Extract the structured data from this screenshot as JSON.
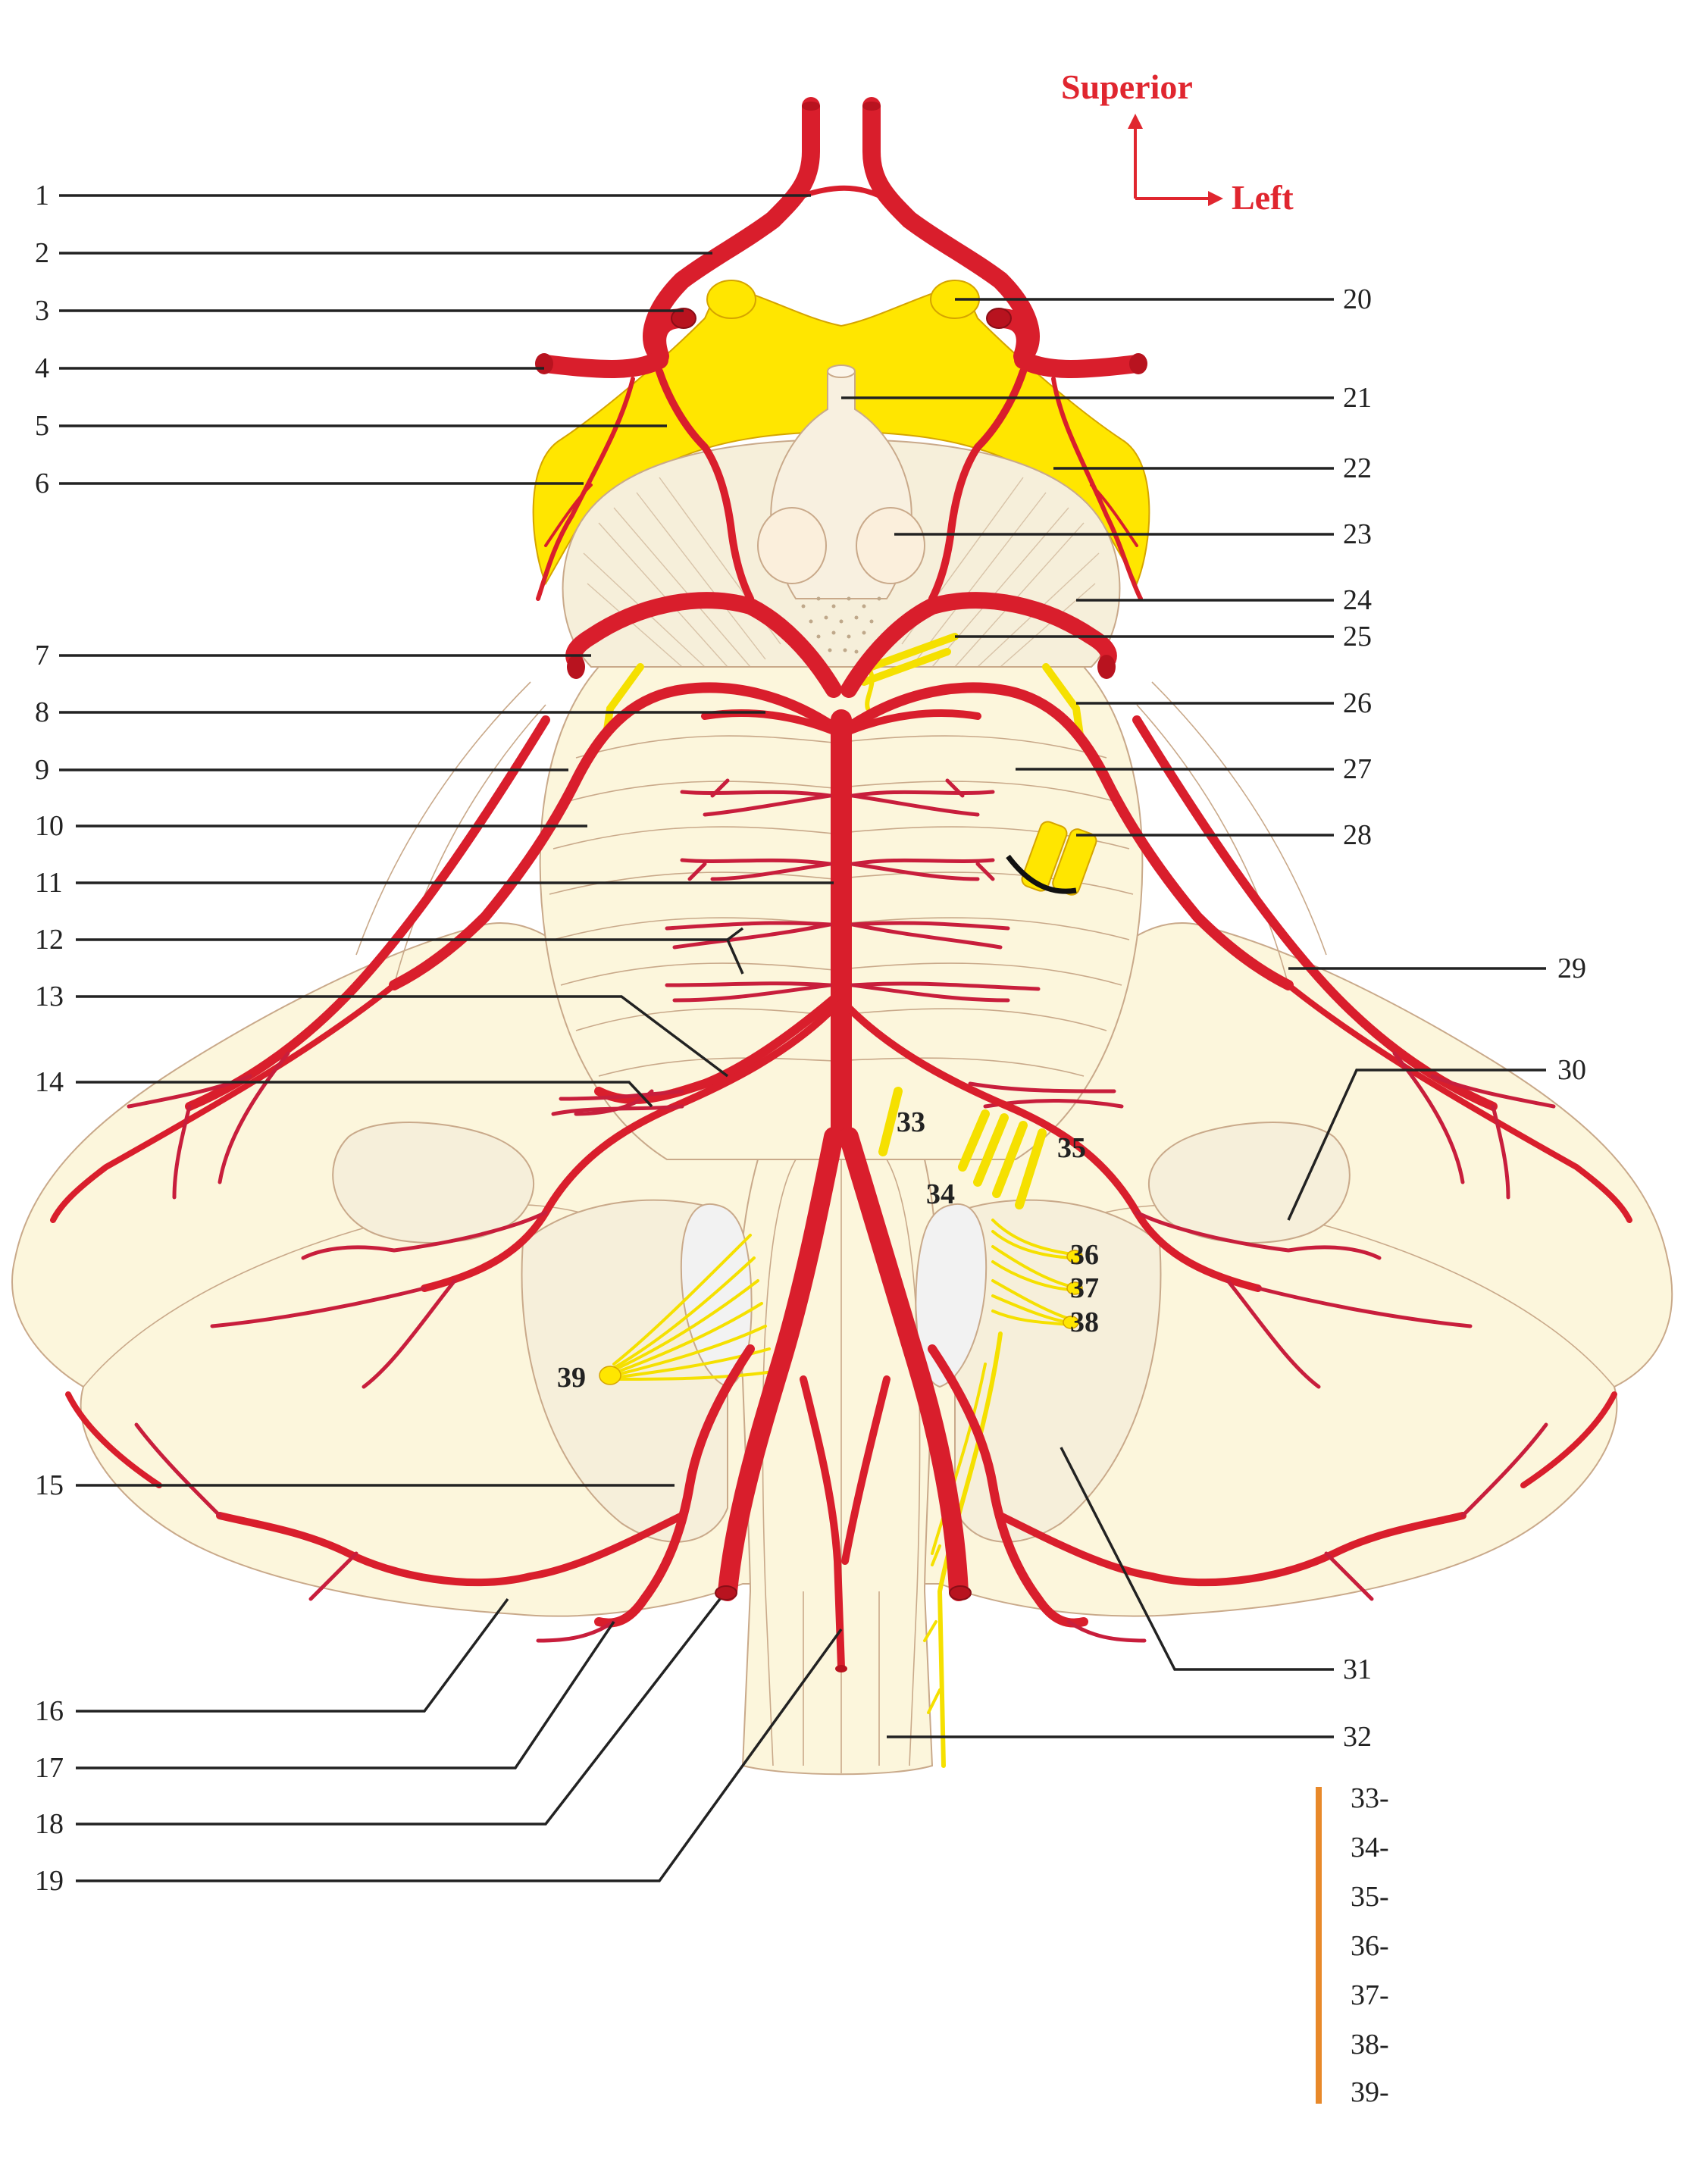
{
  "orientation": {
    "superior": "Superior",
    "left": "Left"
  },
  "left_labels": [
    "1",
    "2",
    "3",
    "4",
    "5",
    "6",
    "7",
    "8",
    "9",
    "10",
    "11",
    "12",
    "13",
    "14",
    "15",
    "16",
    "17",
    "18",
    "19"
  ],
  "right_labels": [
    "20",
    "21",
    "22",
    "23",
    "24",
    "25",
    "26",
    "27",
    "28",
    "29",
    "30",
    "31",
    "32"
  ],
  "nerve_labels": {
    "n33": "33",
    "n34": "34",
    "n35": "35",
    "n36": "36",
    "n37": "37",
    "n38": "38",
    "n39": "39"
  },
  "legend_items": [
    "33-",
    "34-",
    "35-",
    "36-",
    "37-",
    "38-",
    "39-"
  ],
  "colors": {
    "artery": "#d91e2c",
    "nerve": "#f5e000",
    "tissue": "#fcf6dc",
    "legend_bar": "#e8892a"
  }
}
